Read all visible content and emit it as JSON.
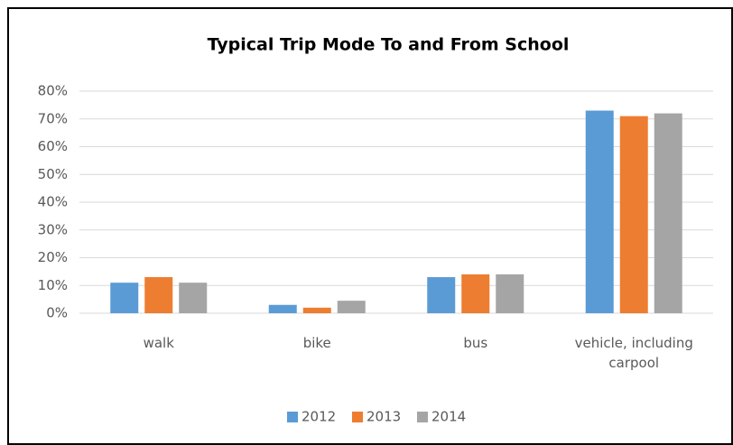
{
  "chart_data": {
    "type": "bar",
    "title": "Typical Trip Mode To and From School",
    "categories": [
      "walk",
      "bike",
      "bus",
      "vehicle, including carpool"
    ],
    "series": [
      {
        "name": "2012",
        "color": "#5b9bd5",
        "values": [
          11,
          3,
          13,
          73
        ]
      },
      {
        "name": "2013",
        "color": "#ed7d31",
        "values": [
          13,
          2,
          14,
          71
        ]
      },
      {
        "name": "2014",
        "color": "#a5a5a5",
        "values": [
          11,
          4.5,
          14,
          72
        ]
      }
    ],
    "ylim": [
      0,
      80
    ],
    "yticks": [
      {
        "value": 0,
        "label": "0%"
      },
      {
        "value": 10,
        "label": "10%"
      },
      {
        "value": 20,
        "label": "20%"
      },
      {
        "value": 30,
        "label": "30%"
      },
      {
        "value": 40,
        "label": "40%"
      },
      {
        "value": 50,
        "label": "50%"
      },
      {
        "value": 60,
        "label": "60%"
      },
      {
        "value": 70,
        "label": "70%"
      },
      {
        "value": 80,
        "label": "80%"
      }
    ],
    "grid": true,
    "legend": "bottom"
  }
}
